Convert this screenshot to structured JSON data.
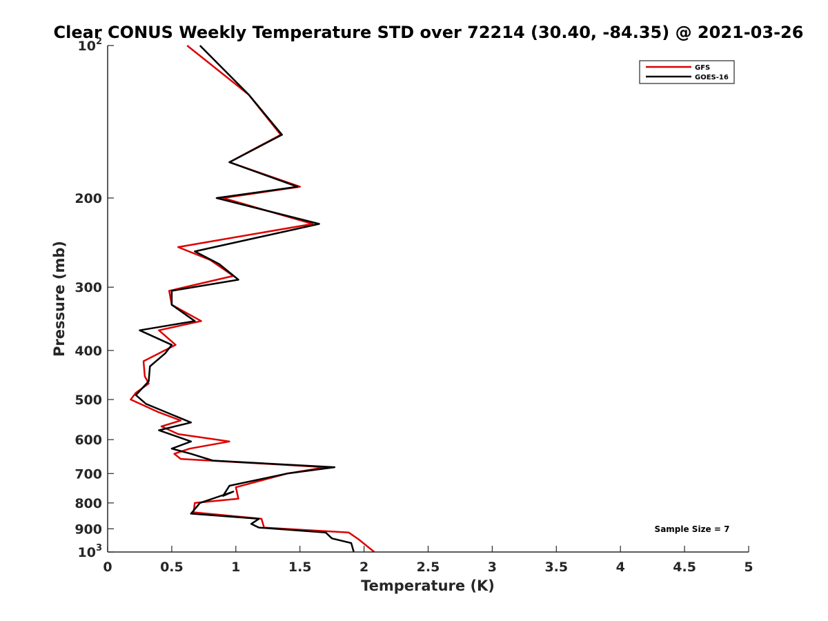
{
  "chart_data": {
    "type": "line",
    "title": "Clear CONUS Weekly Temperature STD over 72214 (30.40, -84.35) @ 2021-03-26",
    "xlabel": "Temperature (K)",
    "ylabel": "Pressure (mb)",
    "xlim": [
      0,
      5
    ],
    "ylim": [
      100,
      1000
    ],
    "y_scale": "log",
    "y_reversed": true,
    "grid": false,
    "legend_position": "top-right",
    "x_ticks": [
      0,
      0.5,
      1,
      1.5,
      2,
      2.5,
      3,
      3.5,
      4,
      4.5,
      5
    ],
    "x_tick_labels": [
      "0",
      "0.5",
      "1",
      "1.5",
      "2",
      "2.5",
      "3",
      "3.5",
      "4",
      "4.5",
      "5"
    ],
    "y_ticks": [
      100,
      200,
      300,
      400,
      500,
      600,
      700,
      800,
      900,
      1000
    ],
    "y_tick_labels": [
      {
        "base": "10",
        "exp": "2"
      },
      {
        "base": "200",
        "exp": ""
      },
      {
        "base": "300",
        "exp": ""
      },
      {
        "base": "400",
        "exp": ""
      },
      {
        "base": "500",
        "exp": ""
      },
      {
        "base": "600",
        "exp": ""
      },
      {
        "base": "700",
        "exp": ""
      },
      {
        "base": "800",
        "exp": ""
      },
      {
        "base": "900",
        "exp": ""
      },
      {
        "base": "10",
        "exp": "3"
      }
    ],
    "annotation": "Sample Size = 7",
    "series": [
      {
        "name": "GFS",
        "color": "#dd0000",
        "points": [
          [
            0.62,
            100
          ],
          [
            1.1,
            125
          ],
          [
            1.35,
            150
          ],
          [
            0.95,
            170
          ],
          [
            1.5,
            190
          ],
          [
            0.9,
            200
          ],
          [
            1.6,
            225
          ],
          [
            0.55,
            250
          ],
          [
            0.8,
            265
          ],
          [
            0.98,
            285
          ],
          [
            0.48,
            305
          ],
          [
            0.5,
            325
          ],
          [
            0.73,
            350
          ],
          [
            0.4,
            365
          ],
          [
            0.53,
            390
          ],
          [
            0.28,
            420
          ],
          [
            0.29,
            450
          ],
          [
            0.32,
            465
          ],
          [
            0.22,
            485
          ],
          [
            0.18,
            500
          ],
          [
            0.4,
            530
          ],
          [
            0.57,
            550
          ],
          [
            0.42,
            565
          ],
          [
            0.55,
            585
          ],
          [
            0.95,
            605
          ],
          [
            0.64,
            625
          ],
          [
            0.52,
            640
          ],
          [
            0.57,
            655
          ],
          [
            1.7,
            680
          ],
          [
            1.4,
            700
          ],
          [
            1.0,
            745
          ],
          [
            1.02,
            785
          ],
          [
            0.68,
            800
          ],
          [
            0.67,
            835
          ],
          [
            1.2,
            860
          ],
          [
            1.22,
            895
          ],
          [
            1.88,
            915
          ],
          [
            1.96,
            945
          ],
          [
            2.08,
            1000
          ]
        ]
      },
      {
        "name": "GOES-16",
        "color": "#000000",
        "points": [
          [
            0.72,
            100
          ],
          [
            1.1,
            125
          ],
          [
            1.36,
            150
          ],
          [
            0.95,
            170
          ],
          [
            1.48,
            190
          ],
          [
            0.85,
            200
          ],
          [
            1.65,
            225
          ],
          [
            0.68,
            255
          ],
          [
            0.87,
            270
          ],
          [
            1.02,
            290
          ],
          [
            0.5,
            305
          ],
          [
            0.5,
            325
          ],
          [
            0.68,
            350
          ],
          [
            0.25,
            365
          ],
          [
            0.5,
            390
          ],
          [
            0.45,
            405
          ],
          [
            0.33,
            430
          ],
          [
            0.32,
            460
          ],
          [
            0.22,
            490
          ],
          [
            0.3,
            510
          ],
          [
            0.65,
            555
          ],
          [
            0.4,
            575
          ],
          [
            0.65,
            605
          ],
          [
            0.5,
            625
          ],
          [
            0.65,
            640
          ],
          [
            0.82,
            660
          ],
          [
            1.77,
            680
          ],
          [
            1.4,
            700
          ],
          [
            0.95,
            740
          ],
          [
            0.9,
            775
          ],
          [
            0.98,
            760
          ],
          [
            0.72,
            800
          ],
          [
            0.65,
            840
          ],
          [
            1.18,
            860
          ],
          [
            1.12,
            880
          ],
          [
            1.18,
            895
          ],
          [
            1.7,
            915
          ],
          [
            1.75,
            940
          ],
          [
            1.9,
            960
          ],
          [
            1.92,
            1000
          ]
        ]
      }
    ]
  }
}
